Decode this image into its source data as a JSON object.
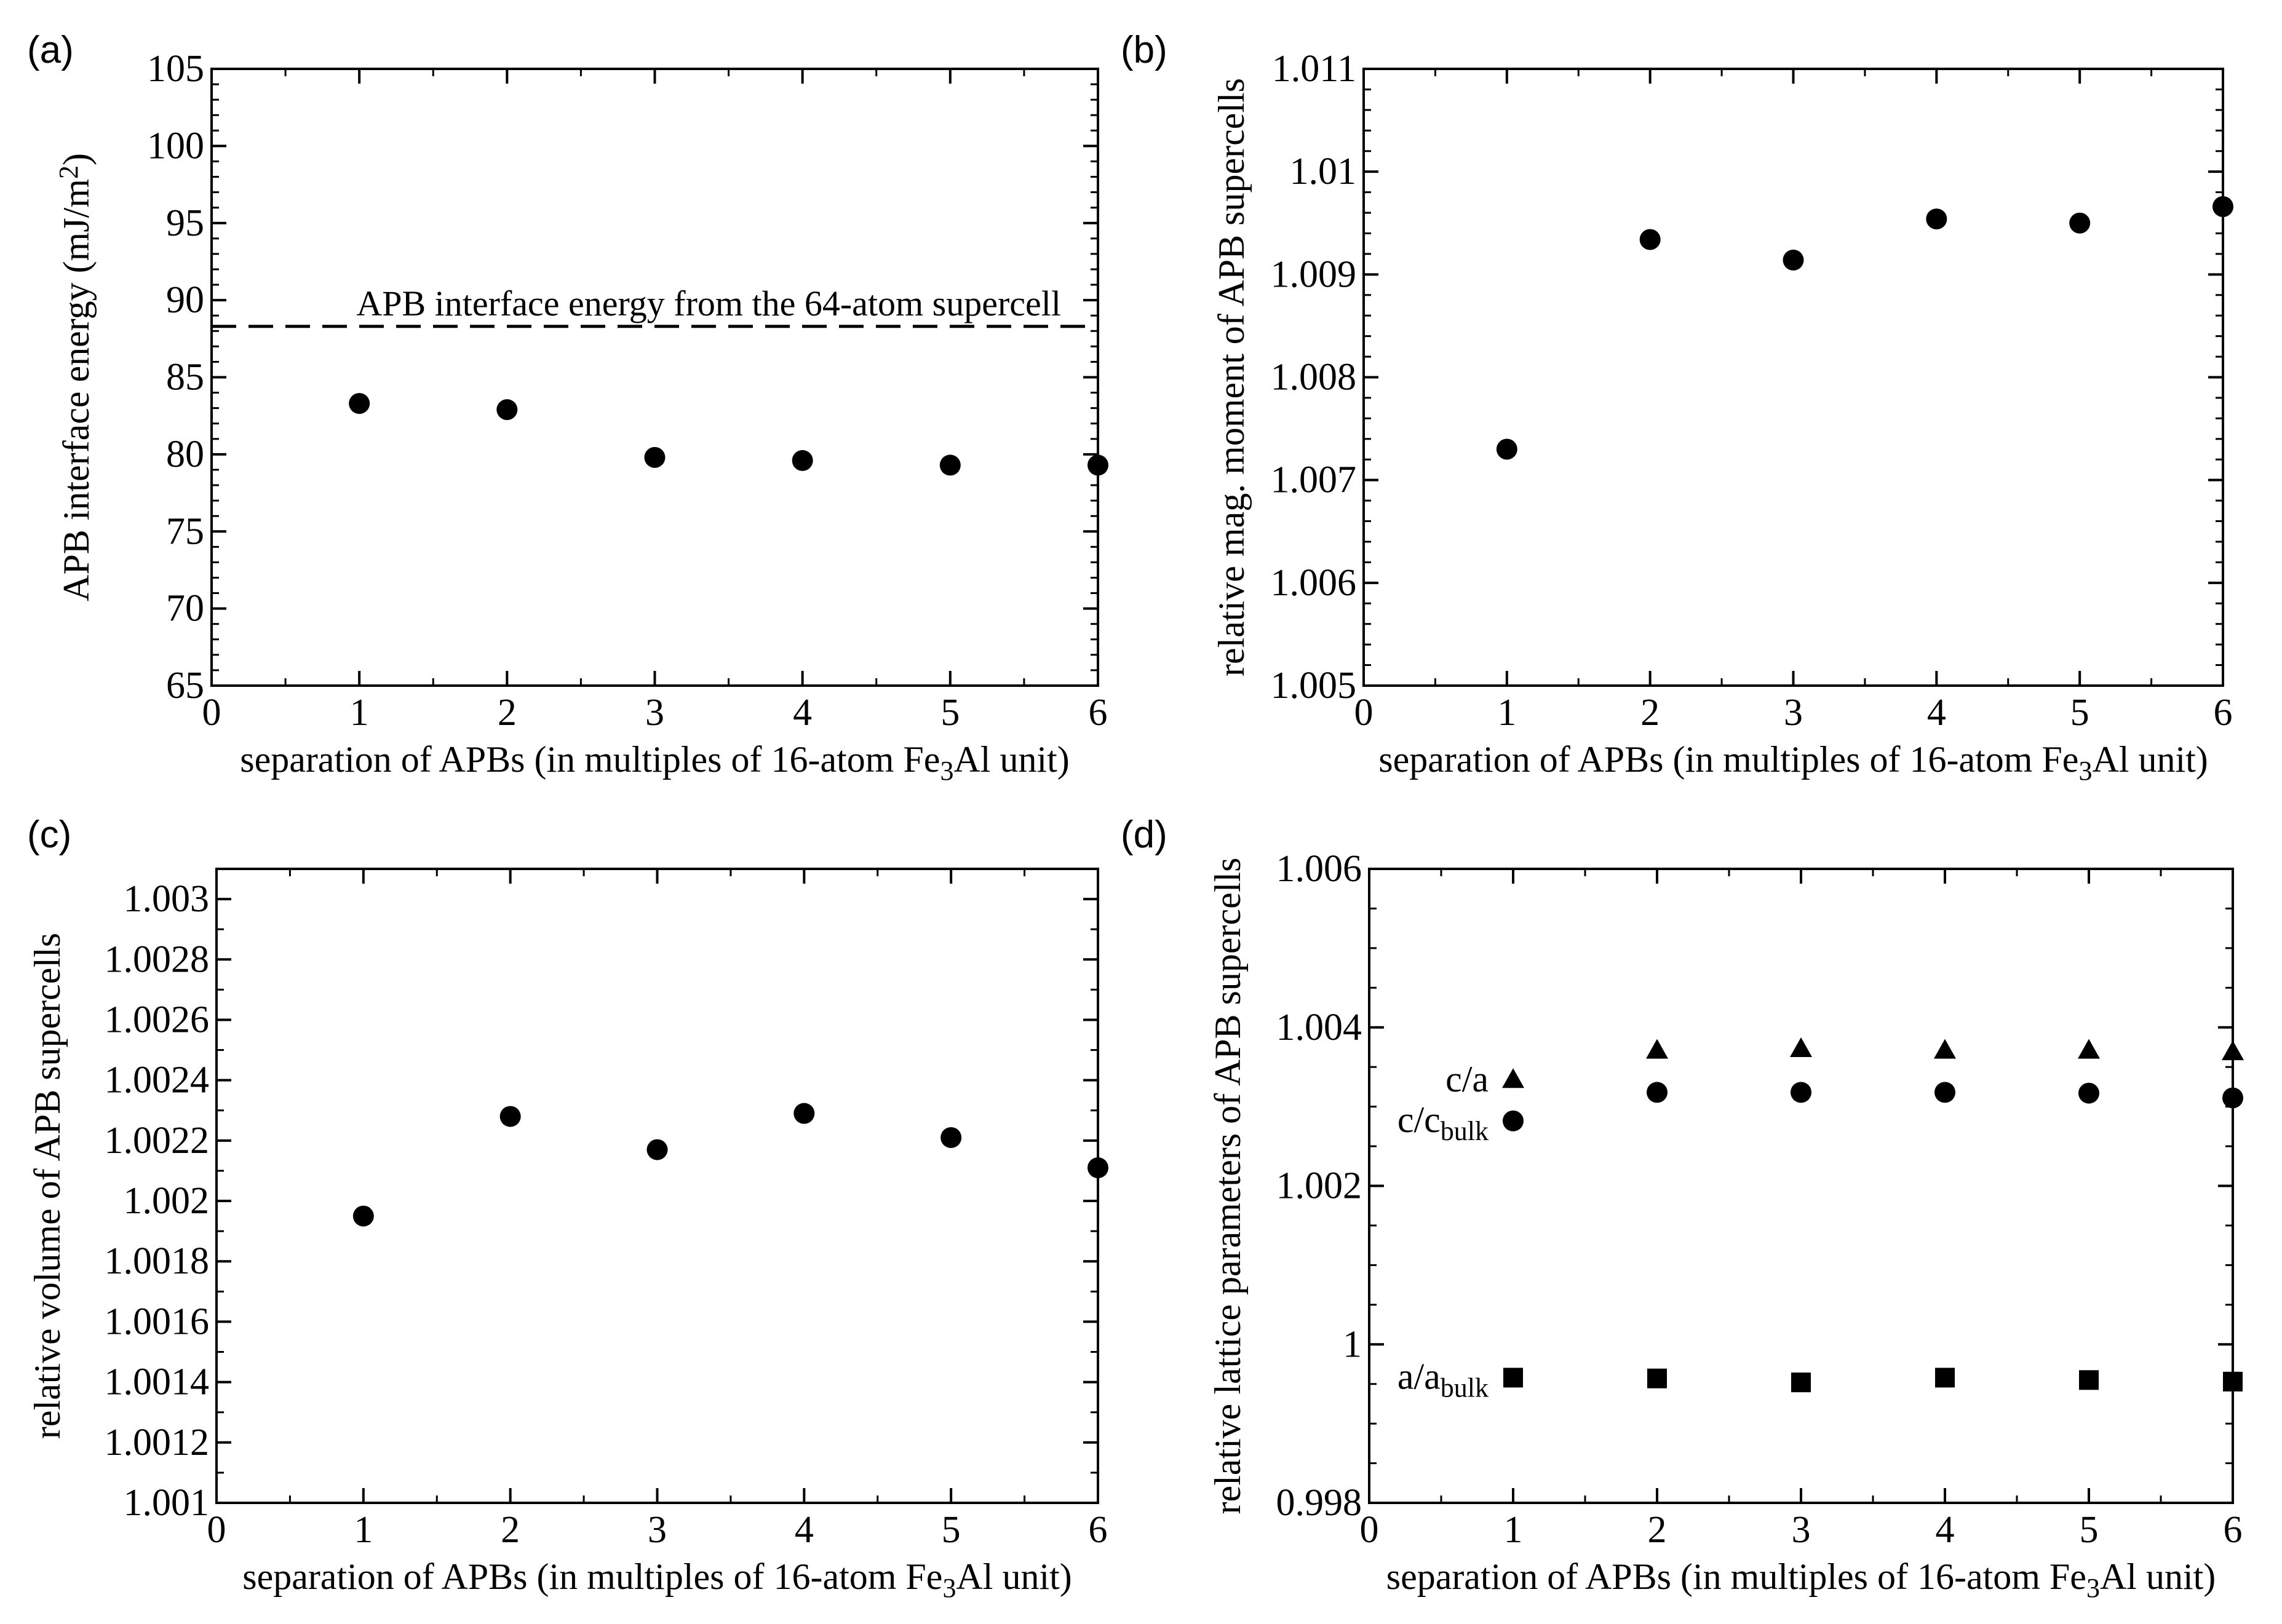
{
  "chart_data": [
    {
      "panel": "(a)",
      "type": "scatter",
      "xlabel_parts": [
        "separation of APBs (in multiples of 16-atom Fe",
        "3",
        "Al unit)"
      ],
      "ylabel_parts": [
        "APB interface energy (mJ/m",
        "2",
        ")"
      ],
      "xlim": [
        0,
        6
      ],
      "ylim": [
        65,
        105
      ],
      "xticks": [
        0,
        1,
        2,
        3,
        4,
        5,
        6
      ],
      "xtick_labels": [
        "0",
        "1",
        "2",
        "3",
        "4",
        "5",
        "6"
      ],
      "yticks": [
        65,
        70,
        75,
        80,
        85,
        90,
        95,
        100,
        105
      ],
      "ytick_labels": [
        "65",
        "70",
        "75",
        "80",
        "85",
        "90",
        "95",
        "100",
        "105"
      ],
      "yminor_step": 1,
      "xminor_step": 0.5,
      "series": [
        {
          "marker": "circle",
          "x": [
            1,
            2,
            3,
            4,
            5,
            6
          ],
          "y": [
            83.3,
            82.9,
            79.8,
            79.6,
            79.3,
            79.3
          ]
        }
      ],
      "reference_line": {
        "y": 88.3,
        "style": "dashed",
        "label": "APB interface energy from the 64-atom supercell"
      }
    },
    {
      "panel": "(b)",
      "type": "scatter",
      "xlabel_parts": [
        "separation of APBs (in multiples of 16-atom Fe",
        "3",
        "Al unit)"
      ],
      "ylabel_parts": [
        "relative mag. moment of APB supercells"
      ],
      "xlim": [
        0,
        6
      ],
      "ylim": [
        1.005,
        1.011
      ],
      "xticks": [
        0,
        1,
        2,
        3,
        4,
        5,
        6
      ],
      "xtick_labels": [
        "0",
        "1",
        "2",
        "3",
        "4",
        "5",
        "6"
      ],
      "yticks": [
        1.005,
        1.006,
        1.007,
        1.008,
        1.009,
        1.01,
        1.011
      ],
      "ytick_labels": [
        "1.005",
        "1.006",
        "1.007",
        "1.008",
        "1.009",
        "1.01",
        "1.011"
      ],
      "yminor_step": 0.0002,
      "xminor_step": 0.5,
      "series": [
        {
          "marker": "circle",
          "x": [
            1,
            2,
            3,
            4,
            5,
            6
          ],
          "y": [
            1.0073,
            1.00934,
            1.00914,
            1.00954,
            1.0095,
            1.00966
          ]
        }
      ]
    },
    {
      "panel": "(c)",
      "type": "scatter",
      "xlabel_parts": [
        "separation of APBs (in multiples of 16-atom Fe",
        "3",
        "Al unit)"
      ],
      "ylabel_parts": [
        "relative volume of APB supercells"
      ],
      "xlim": [
        0,
        6
      ],
      "ylim": [
        1.001,
        1.0031
      ],
      "xticks": [
        0,
        1,
        2,
        3,
        4,
        5,
        6
      ],
      "xtick_labels": [
        "0",
        "1",
        "2",
        "3",
        "4",
        "5",
        "6"
      ],
      "yticks": [
        1.001,
        1.0012,
        1.0014,
        1.0016,
        1.0018,
        1.002,
        1.0022,
        1.0024,
        1.0026,
        1.0028,
        1.003
      ],
      "ytick_labels": [
        "1.001",
        "1.0012",
        "1.0014",
        "1.0016",
        "1.0018",
        "1.002",
        "1.0022",
        "1.0024",
        "1.0026",
        "1.0028",
        "1.003"
      ],
      "yminor_step": 0.0001,
      "xminor_step": 0.5,
      "series": [
        {
          "marker": "circle",
          "x": [
            1,
            2,
            3,
            4,
            5,
            6
          ],
          "y": [
            1.00195,
            1.00228,
            1.00217,
            1.00229,
            1.00221,
            1.00211
          ]
        }
      ]
    },
    {
      "panel": "(d)",
      "type": "scatter",
      "xlabel_parts": [
        "separation of APBs (in multiples of 16-atom Fe",
        "3",
        "Al unit)"
      ],
      "ylabel_parts": [
        "relative lattice parameters of APB supercells"
      ],
      "xlim": [
        0,
        6
      ],
      "ylim": [
        0.998,
        1.006
      ],
      "xticks": [
        0,
        1,
        2,
        3,
        4,
        5,
        6
      ],
      "xtick_labels": [
        "0",
        "1",
        "2",
        "3",
        "4",
        "5",
        "6"
      ],
      "yticks": [
        0.998,
        1.0,
        1.002,
        1.004,
        1.006
      ],
      "ytick_labels": [
        "0.998",
        "1",
        "1.002",
        "1.004",
        "1.006"
      ],
      "yminor_step": 0.0005,
      "xminor_step": 0.5,
      "series": [
        {
          "name_parts": [
            "c/a",
            ""
          ],
          "marker": "triangle",
          "x": [
            1,
            2,
            3,
            4,
            5,
            6
          ],
          "y": [
            1.00333,
            1.0037,
            1.00372,
            1.0037,
            1.0037,
            1.00368
          ]
        },
        {
          "name_parts": [
            "c/c",
            "bulk"
          ],
          "marker": "circle",
          "x": [
            1,
            2,
            3,
            4,
            5,
            6
          ],
          "y": [
            1.00282,
            1.00318,
            1.00318,
            1.00318,
            1.00317,
            1.00311
          ]
        },
        {
          "name_parts": [
            "a/a",
            "bulk"
          ],
          "marker": "square",
          "x": [
            1,
            2,
            3,
            4,
            5,
            6
          ],
          "y": [
            0.99958,
            0.99957,
            0.99952,
            0.99958,
            0.99955,
            0.99953
          ]
        }
      ]
    }
  ]
}
